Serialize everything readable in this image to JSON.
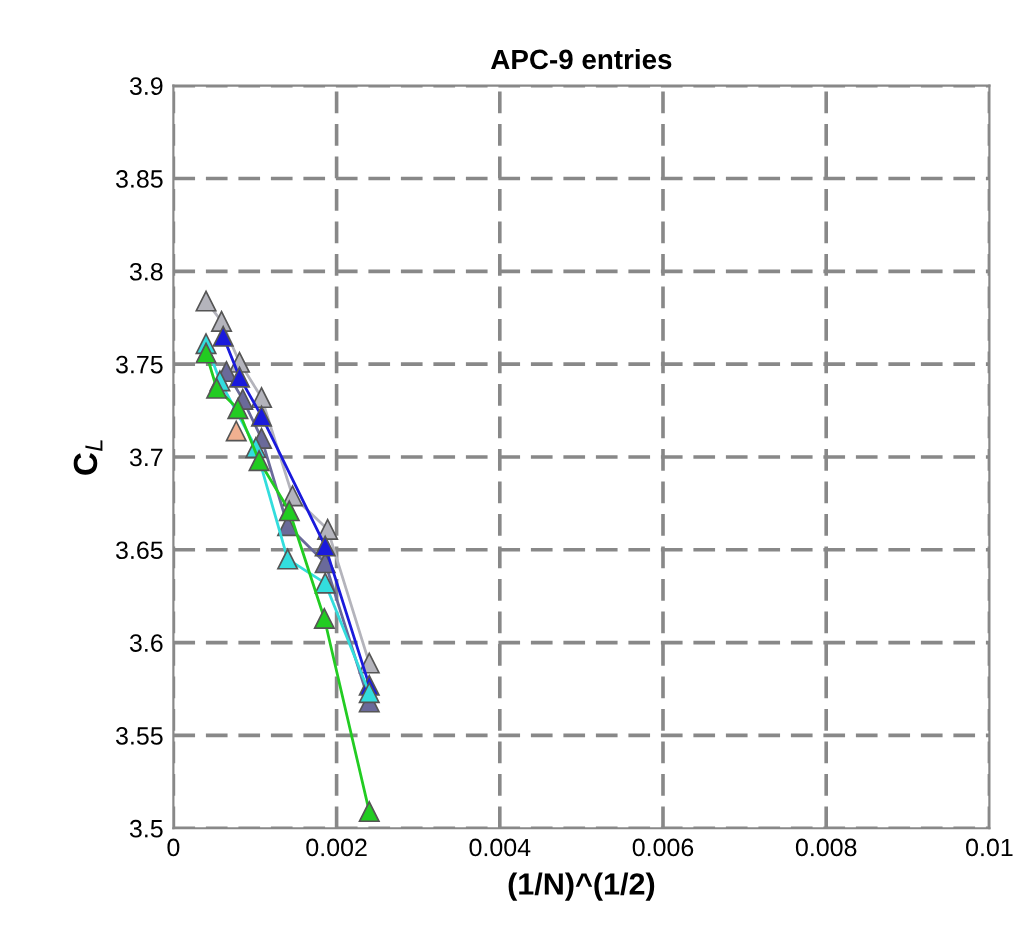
{
  "chart_data": {
    "type": "line",
    "title": "APC-9 entries",
    "xlabel": "(1/N)^(1/2)",
    "ylabel": "C$_{L}$",
    "xlim": [
      0,
      0.01
    ],
    "xticks": [
      0,
      0.002,
      0.004,
      0.006,
      0.008,
      0.01
    ],
    "ylim": [
      3.5,
      3.9
    ],
    "yticks": [
      3.5,
      3.55,
      3.6,
      3.65,
      3.7,
      3.75,
      3.8,
      3.85,
      3.9
    ],
    "grid": true,
    "marker": "triangle",
    "line_style": "solid",
    "series": [
      {
        "color": "#b4b4bc",
        "x": [
          0.0004,
          0.00059,
          0.00081,
          0.00108,
          0.00146,
          0.00189,
          0.0024
        ],
        "values": [
          3.784,
          3.773,
          3.751,
          3.732,
          3.679,
          3.661,
          3.589
        ]
      },
      {
        "color": "#6a6a9a",
        "x": [
          0.00065,
          0.00085,
          0.00108,
          0.0014,
          0.00186,
          0.0024
        ],
        "values": [
          3.746,
          3.731,
          3.71,
          3.663,
          3.643,
          3.568
        ]
      },
      {
        "color": "#1a1adc",
        "x": [
          0.00061,
          0.00081,
          0.00108,
          0.00186,
          0.0024
        ],
        "values": [
          3.765,
          3.743,
          3.722,
          3.652,
          3.577
        ]
      },
      {
        "color": "#33dddd",
        "x": [
          0.0004,
          0.00057,
          0.00101,
          0.0014,
          0.00186,
          0.0024
        ],
        "values": [
          3.761,
          3.741,
          3.705,
          3.645,
          3.632,
          3.573
        ]
      },
      {
        "color": "#f0b090",
        "x": [
          0.00077
        ],
        "values": [
          3.714
        ]
      },
      {
        "color": "#22cc22",
        "x": [
          0.0004,
          0.00053,
          0.00079,
          0.00105,
          0.00142,
          0.00185,
          0.0024
        ],
        "values": [
          3.756,
          3.737,
          3.726,
          3.698,
          3.671,
          3.613,
          3.509
        ]
      }
    ]
  }
}
